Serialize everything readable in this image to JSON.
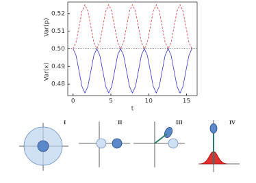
{
  "chart_data": {
    "type": "line",
    "x": [
      0,
      0.39,
      0.79,
      1.18,
      1.57,
      1.96,
      2.36,
      2.75,
      3.14,
      3.53,
      3.93,
      4.32,
      4.71,
      5.11,
      5.5,
      5.89,
      6.28,
      6.68,
      7.07,
      7.46,
      7.85,
      8.25,
      8.64,
      9.03,
      9.42,
      9.82,
      10.21,
      10.6,
      11.0,
      11.39,
      11.78,
      12.17,
      12.57,
      12.96,
      13.35,
      13.74,
      14.14,
      14.53,
      14.92,
      15.32,
      15.71
    ],
    "series": [
      {
        "color": "#e03030",
        "dash": "3,2",
        "values": [
          0.5,
          0.50366,
          0.5125,
          0.52134,
          0.525,
          0.52134,
          0.5125,
          0.50366,
          0.5,
          0.50366,
          0.5125,
          0.52134,
          0.525,
          0.52134,
          0.5125,
          0.50366,
          0.5,
          0.50366,
          0.5125,
          0.52134,
          0.525,
          0.52134,
          0.5125,
          0.50366,
          0.5,
          0.50366,
          0.5125,
          0.52134,
          0.525,
          0.52134,
          0.5125,
          0.50366,
          0.5,
          0.50366,
          0.5125,
          0.52134,
          0.525,
          0.52134,
          0.5125,
          0.50366,
          0.5
        ]
      },
      {
        "color": "#3030d0",
        "dash": "none",
        "values": [
          0.5,
          0.49634,
          0.4875,
          0.47866,
          0.475,
          0.47866,
          0.4875,
          0.49634,
          0.5,
          0.49634,
          0.4875,
          0.47866,
          0.475,
          0.47866,
          0.4875,
          0.49634,
          0.5,
          0.49634,
          0.4875,
          0.47866,
          0.475,
          0.47866,
          0.4875,
          0.49634,
          0.5,
          0.49634,
          0.4875,
          0.47866,
          0.475,
          0.47866,
          0.4875,
          0.49634,
          0.5,
          0.49634,
          0.4875,
          0.47866,
          0.475,
          0.47866,
          0.4875,
          0.49634,
          0.5
        ]
      }
    ],
    "hline": 0.5,
    "xlabel": "t",
    "ylabels": [
      "Var(p)",
      "Var(x)"
    ],
    "xlim": [
      -0.7,
      16.4
    ],
    "ylim": [
      0.4735,
      0.5265
    ],
    "xticks": [
      0,
      5,
      10,
      15
    ],
    "yticks": [
      0.48,
      0.49,
      {
        "value": 0.5,
        "label": "0.50"
      },
      0.51,
      0.52
    ]
  },
  "panels": [
    "I",
    "II",
    "III",
    "IV"
  ]
}
